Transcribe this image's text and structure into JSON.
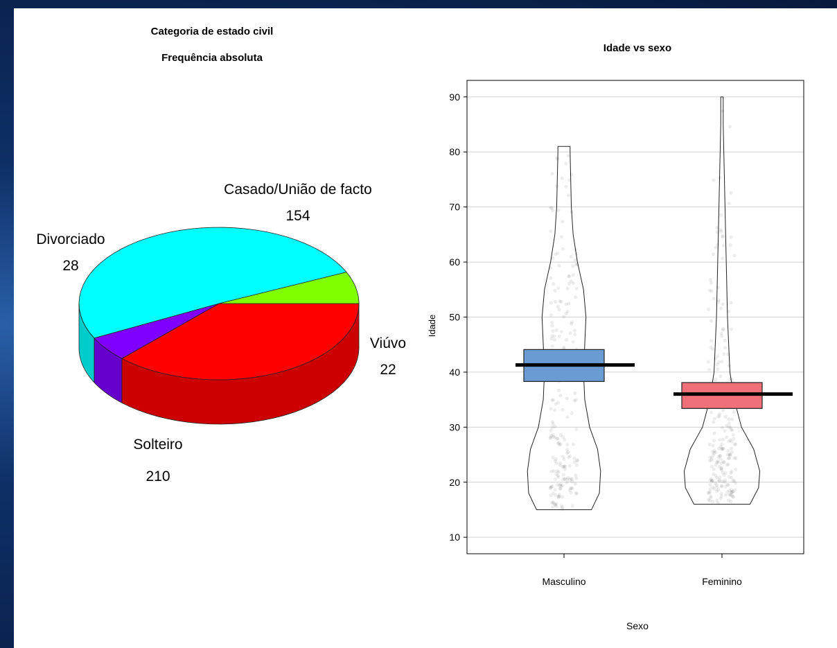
{
  "chart_data": [
    {
      "type": "pie",
      "title_lines": [
        "Categoria de estado civil",
        "Frequência absoluta"
      ],
      "slices": [
        {
          "label": "Casado/União de facto",
          "value": 154,
          "color": "#ff0000"
        },
        {
          "label": "Viúvo",
          "value": 22,
          "color": "#8000ff"
        },
        {
          "label": "Solteiro",
          "value": 210,
          "color": "#00ffff"
        },
        {
          "label": "Divorciado",
          "value": 28,
          "color": "#80ff00"
        }
      ]
    },
    {
      "type": "violin",
      "title": "Idade vs sexo",
      "xlabel": "Sexo",
      "ylabel": "Idade",
      "ylim": [
        7,
        93
      ],
      "yticks": [
        10,
        20,
        30,
        40,
        50,
        60,
        70,
        80,
        90
      ],
      "grid": true,
      "categories": [
        "Masculino",
        "Feminino"
      ],
      "groups": [
        {
          "name": "Masculino",
          "mean": 41.3,
          "ci_low": 38.3,
          "ci_high": 44.1,
          "min": 15,
          "max": 81,
          "color": "#6a9bd3",
          "density": [
            [
              15,
              0.45
            ],
            [
              18,
              0.58
            ],
            [
              22,
              0.6
            ],
            [
              26,
              0.55
            ],
            [
              30,
              0.42
            ],
            [
              35,
              0.34
            ],
            [
              40,
              0.32
            ],
            [
              45,
              0.34
            ],
            [
              50,
              0.36
            ],
            [
              55,
              0.32
            ],
            [
              60,
              0.22
            ],
            [
              65,
              0.15
            ],
            [
              70,
              0.12
            ],
            [
              75,
              0.11
            ],
            [
              80,
              0.1
            ],
            [
              81,
              0.1
            ]
          ]
        },
        {
          "name": "Feminino",
          "mean": 36,
          "ci_low": 33.4,
          "ci_high": 38.1,
          "min": 16,
          "max": 90,
          "color": "#f0707a",
          "density": [
            [
              16,
              0.46
            ],
            [
              19,
              0.6
            ],
            [
              22,
              0.62
            ],
            [
              26,
              0.52
            ],
            [
              30,
              0.32
            ],
            [
              35,
              0.2
            ],
            [
              40,
              0.13
            ],
            [
              45,
              0.11
            ],
            [
              50,
              0.09
            ],
            [
              55,
              0.08
            ],
            [
              60,
              0.07
            ],
            [
              65,
              0.06
            ],
            [
              70,
              0.05
            ],
            [
              75,
              0.04
            ],
            [
              80,
              0.03
            ],
            [
              85,
              0.02
            ],
            [
              90,
              0.02
            ]
          ]
        }
      ]
    }
  ]
}
